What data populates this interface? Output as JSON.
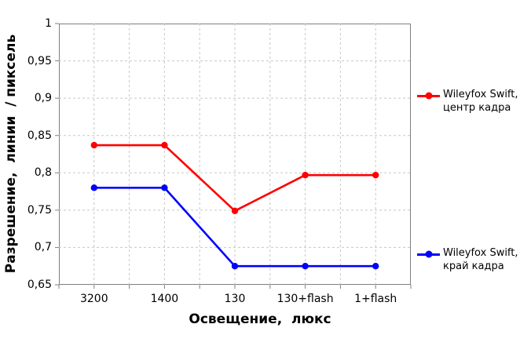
{
  "chart_data": {
    "type": "line",
    "title": "",
    "categories": [
      "3200",
      "1400",
      "130",
      "130+flash",
      "1+flash"
    ],
    "series": [
      {
        "name": "Wileyfox Swift, центр кадра",
        "color": "#ff0000",
        "values": [
          0.837,
          0.837,
          0.749,
          0.797,
          0.797
        ]
      },
      {
        "name": "Wileyfox Swift, край кадра",
        "color": "#0000ff",
        "values": [
          0.78,
          0.78,
          0.675,
          0.675,
          0.675
        ]
      }
    ],
    "xlabel": "Освещение,  люкс",
    "ylabel": "Разрешение,  линии  / пиксель",
    "ylim": [
      0.65,
      1.0
    ],
    "ytick_step": 0.05,
    "ytick_labels": [
      "0,65",
      "0,7",
      "0,75",
      "0,8",
      "0,85",
      "0,9",
      "0,95",
      "1"
    ],
    "grid": true,
    "legend_position": "right",
    "colors": {
      "grid": "#c8c8c8",
      "axis": "#7f7f7f",
      "text": "#000000",
      "background": "#ffffff"
    }
  },
  "legend": {
    "entries": [
      {
        "line1": "Wileyfox Swift,",
        "line2": "центр кадра",
        "color": "#ff0000"
      },
      {
        "line1": "Wileyfox Swift,",
        "line2": "край кадра",
        "color": "#0000ff"
      }
    ]
  }
}
